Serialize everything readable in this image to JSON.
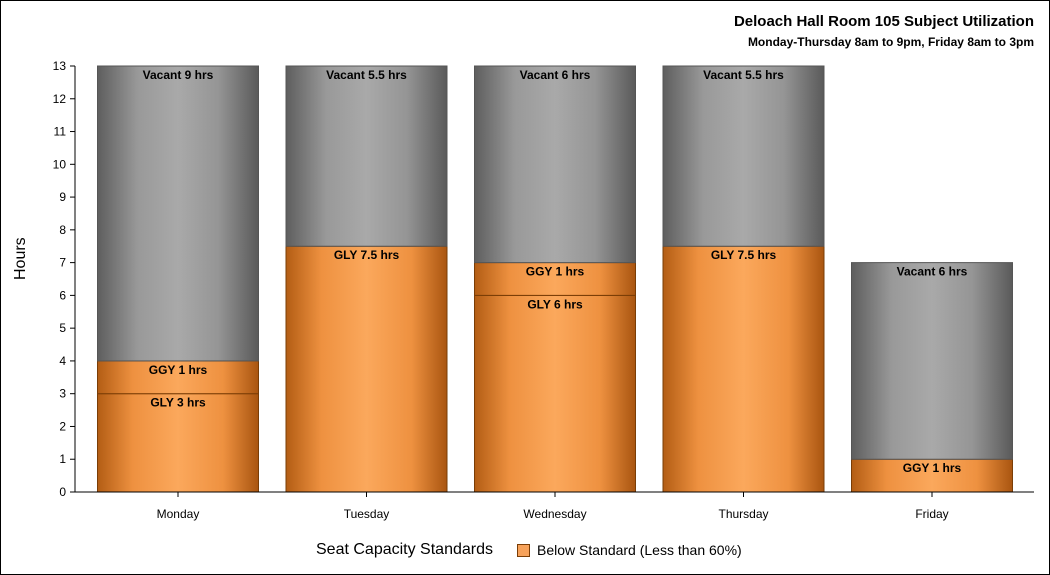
{
  "chart_data": {
    "type": "bar",
    "title": "Deloach Hall Room 105 Subject Utilization",
    "subtitle": "Monday-Thursday 8am to 9pm, Friday 8am to 3pm",
    "ylabel": "Hours",
    "ylim": [
      0,
      13
    ],
    "yticks": [
      "0",
      "1",
      "2",
      "3",
      "4",
      "5",
      "6",
      "7",
      "8",
      "9",
      "10",
      "11",
      "12",
      "13"
    ],
    "categories": [
      "Monday",
      "Tuesday",
      "Wednesday",
      "Thursday",
      "Friday"
    ],
    "legend": {
      "title": "Seat Capacity Standards",
      "items": [
        {
          "label": "Below Standard (Less than 60%)",
          "color": "#f7a25a"
        }
      ]
    },
    "bars": [
      {
        "category": "Monday",
        "segments": [
          {
            "label": "GLY 3 hrs",
            "value": 3,
            "kind": "used"
          },
          {
            "label": "GGY 1 hrs",
            "value": 1,
            "kind": "used"
          },
          {
            "label": "Vacant 9 hrs",
            "value": 9,
            "kind": "vacant"
          }
        ]
      },
      {
        "category": "Tuesday",
        "segments": [
          {
            "label": "GLY 7.5 hrs",
            "value": 7.5,
            "kind": "used"
          },
          {
            "label": "Vacant 5.5 hrs",
            "value": 5.5,
            "kind": "vacant"
          }
        ]
      },
      {
        "category": "Wednesday",
        "segments": [
          {
            "label": "GLY 6 hrs",
            "value": 6,
            "kind": "used"
          },
          {
            "label": "GGY 1 hrs",
            "value": 1,
            "kind": "used"
          },
          {
            "label": "Vacant 6 hrs",
            "value": 6,
            "kind": "vacant"
          }
        ]
      },
      {
        "category": "Thursday",
        "segments": [
          {
            "label": "GLY 7.5 hrs",
            "value": 7.5,
            "kind": "used"
          },
          {
            "label": "Vacant 5.5 hrs",
            "value": 5.5,
            "kind": "vacant"
          }
        ]
      },
      {
        "category": "Friday",
        "segments": [
          {
            "label": "GGY 1 hrs",
            "value": 1,
            "kind": "used"
          },
          {
            "label": "Vacant 6 hrs",
            "value": 6,
            "kind": "vacant"
          }
        ]
      }
    ],
    "colors": {
      "used": "#f7a25a",
      "vacant": "#a6a6a6",
      "axis": "#000000"
    }
  }
}
